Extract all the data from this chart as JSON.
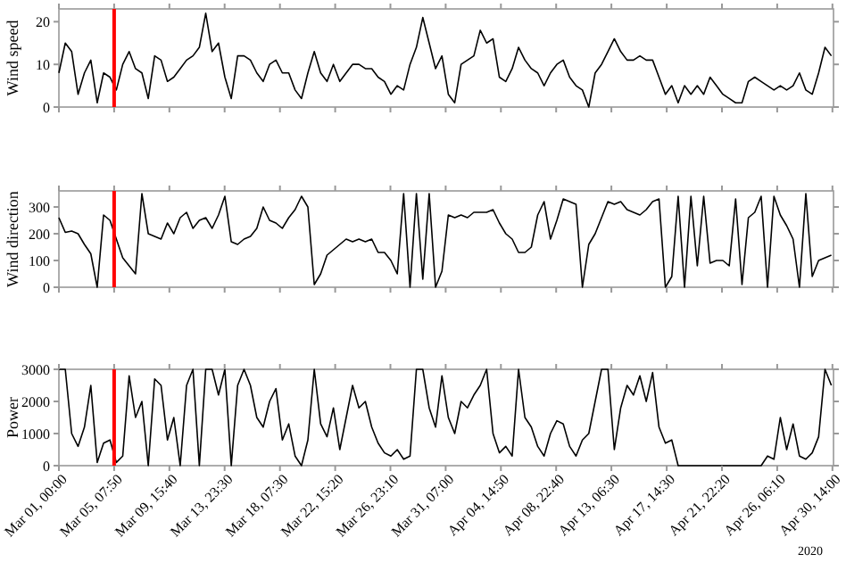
{
  "chart_data": [
    {
      "type": "line",
      "ylabel": "Wind speed",
      "xlim": [
        "2020-03-01T00:00",
        "2020-04-30T16:00"
      ],
      "ylim": [
        0,
        23
      ],
      "yticks": [
        0,
        10,
        20
      ],
      "tick_labels": "y",
      "grid": false,
      "xticks": [
        {
          "value": "2020-03-01T00:00",
          "label": null
        },
        {
          "value": "2020-03-05T07:50",
          "label": null
        },
        {
          "value": "2020-03-09T15:40",
          "label": null
        },
        {
          "value": "2020-03-13T23:30",
          "label": null
        },
        {
          "value": "2020-03-18T07:30",
          "label": null
        },
        {
          "value": "2020-03-22T15:20",
          "label": null
        },
        {
          "value": "2020-03-26T23:10",
          "label": null
        },
        {
          "value": "2020-03-31T07:00",
          "label": null
        },
        {
          "value": "2020-04-04T14:50",
          "label": null
        },
        {
          "value": "2020-04-08T22:40",
          "label": null
        },
        {
          "value": "2020-04-13T06:30",
          "label": null
        },
        {
          "value": "2020-04-17T14:30",
          "label": null
        },
        {
          "value": "2020-04-21T22:20",
          "label": null
        },
        {
          "value": "2020-04-26T06:10",
          "label": null
        },
        {
          "value": "2020-04-30T14:00",
          "label": null
        }
      ],
      "ref_lines": [
        {
          "axis": "x",
          "value": "2020-03-05T07:50",
          "color": "#ff0000"
        }
      ],
      "x": [
        "2020-03-01T00:00",
        "2020-03-01T12:00",
        "2020-03-02T00:00",
        "2020-03-02T12:00",
        "2020-03-03T00:00",
        "2020-03-03T12:00",
        "2020-03-04T00:00",
        "2020-03-04T12:00",
        "2020-03-05T00:00",
        "2020-03-05T12:00",
        "2020-03-06T00:00",
        "2020-03-06T12:00",
        "2020-03-07T00:00",
        "2020-03-07T12:00",
        "2020-03-08T00:00",
        "2020-03-08T12:00",
        "2020-03-09T00:00",
        "2020-03-09T12:00",
        "2020-03-10T00:00",
        "2020-03-10T12:00",
        "2020-03-11T00:00",
        "2020-03-11T12:00",
        "2020-03-12T00:00",
        "2020-03-12T12:00",
        "2020-03-13T00:00",
        "2020-03-13T12:00",
        "2020-03-14T00:00",
        "2020-03-14T12:00",
        "2020-03-15T00:00",
        "2020-03-15T12:00",
        "2020-03-16T00:00",
        "2020-03-16T12:00",
        "2020-03-17T00:00",
        "2020-03-17T12:00",
        "2020-03-18T00:00",
        "2020-03-18T12:00",
        "2020-03-19T00:00",
        "2020-03-19T12:00",
        "2020-03-20T00:00",
        "2020-03-20T12:00",
        "2020-03-21T00:00",
        "2020-03-21T12:00",
        "2020-03-22T00:00",
        "2020-03-22T12:00",
        "2020-03-23T00:00",
        "2020-03-23T12:00",
        "2020-03-24T00:00",
        "2020-03-24T12:00",
        "2020-03-25T00:00",
        "2020-03-25T12:00",
        "2020-03-26T00:00",
        "2020-03-26T12:00",
        "2020-03-27T00:00",
        "2020-03-27T12:00",
        "2020-03-28T00:00",
        "2020-03-28T12:00",
        "2020-03-29T00:00",
        "2020-03-29T12:00",
        "2020-03-30T00:00",
        "2020-03-30T12:00",
        "2020-03-31T00:00",
        "2020-03-31T12:00",
        "2020-04-01T00:00",
        "2020-04-01T12:00",
        "2020-04-02T00:00",
        "2020-04-02T12:00",
        "2020-04-03T00:00",
        "2020-04-03T12:00",
        "2020-04-04T00:00",
        "2020-04-04T12:00",
        "2020-04-05T00:00",
        "2020-04-05T12:00",
        "2020-04-06T00:00",
        "2020-04-06T12:00",
        "2020-04-07T00:00",
        "2020-04-07T12:00",
        "2020-04-08T00:00",
        "2020-04-08T12:00",
        "2020-04-09T00:00",
        "2020-04-09T12:00",
        "2020-04-10T00:00",
        "2020-04-10T12:00",
        "2020-04-11T00:00",
        "2020-04-11T12:00",
        "2020-04-12T00:00",
        "2020-04-12T12:00",
        "2020-04-13T00:00",
        "2020-04-13T12:00",
        "2020-04-14T00:00",
        "2020-04-14T12:00",
        "2020-04-15T00:00",
        "2020-04-15T12:00",
        "2020-04-16T00:00",
        "2020-04-16T12:00",
        "2020-04-17T00:00",
        "2020-04-17T12:00",
        "2020-04-18T00:00",
        "2020-04-18T12:00",
        "2020-04-19T00:00",
        "2020-04-19T12:00",
        "2020-04-20T00:00",
        "2020-04-20T12:00",
        "2020-04-21T00:00",
        "2020-04-21T12:00",
        "2020-04-22T00:00",
        "2020-04-22T12:00",
        "2020-04-23T00:00",
        "2020-04-23T12:00",
        "2020-04-24T00:00",
        "2020-04-24T12:00",
        "2020-04-25T00:00",
        "2020-04-25T12:00",
        "2020-04-26T00:00",
        "2020-04-26T12:00",
        "2020-04-27T00:00",
        "2020-04-27T12:00",
        "2020-04-28T00:00",
        "2020-04-28T12:00",
        "2020-04-29T00:00",
        "2020-04-29T12:00",
        "2020-04-30T00:00",
        "2020-04-30T12:00"
      ],
      "series": [
        {
          "color": "#000000",
          "values": [
            8,
            15,
            13,
            3,
            8,
            11,
            1,
            8,
            7,
            4,
            10,
            13,
            9,
            8,
            2,
            12,
            11,
            6,
            7,
            9,
            11,
            12,
            14,
            22,
            13,
            15,
            7,
            2,
            12,
            12,
            11,
            8,
            6,
            10,
            11,
            8,
            8,
            4,
            2,
            8,
            13,
            8,
            6,
            10,
            6,
            8,
            10,
            10,
            9,
            9,
            7,
            6,
            3,
            5,
            4,
            10,
            14,
            21,
            15,
            9,
            12,
            3,
            1,
            10,
            11,
            12,
            18,
            15,
            16,
            7,
            6,
            9,
            14,
            11,
            9,
            8,
            5,
            8,
            10,
            11,
            7,
            5,
            4,
            0,
            8,
            10,
            13,
            16,
            13,
            11,
            11,
            12,
            11,
            11,
            7,
            3,
            5,
            1,
            5,
            3,
            5,
            3,
            7,
            5,
            3,
            2,
            1,
            1,
            6,
            7,
            6,
            5,
            4,
            5,
            4,
            5,
            8,
            4,
            3,
            8,
            14,
            12
          ]
        }
      ]
    },
    {
      "type": "line",
      "ylabel": "Wind direction",
      "xlim": [
        "2020-03-01T00:00",
        "2020-04-30T16:00"
      ],
      "ylim": [
        0,
        360
      ],
      "yticks": [
        0,
        100,
        200,
        300
      ],
      "tick_labels": "y",
      "grid": false,
      "xticks": [
        {
          "value": "2020-03-01T00:00",
          "label": null
        },
        {
          "value": "2020-03-05T07:50",
          "label": null
        },
        {
          "value": "2020-03-09T15:40",
          "label": null
        },
        {
          "value": "2020-03-13T23:30",
          "label": null
        },
        {
          "value": "2020-03-18T07:30",
          "label": null
        },
        {
          "value": "2020-03-22T15:20",
          "label": null
        },
        {
          "value": "2020-03-26T23:10",
          "label": null
        },
        {
          "value": "2020-03-31T07:00",
          "label": null
        },
        {
          "value": "2020-04-04T14:50",
          "label": null
        },
        {
          "value": "2020-04-08T22:40",
          "label": null
        },
        {
          "value": "2020-04-13T06:30",
          "label": null
        },
        {
          "value": "2020-04-17T14:30",
          "label": null
        },
        {
          "value": "2020-04-21T22:20",
          "label": null
        },
        {
          "value": "2020-04-26T06:10",
          "label": null
        },
        {
          "value": "2020-04-30T14:00",
          "label": null
        }
      ],
      "ref_lines": [
        {
          "axis": "x",
          "value": "2020-03-05T07:50",
          "color": "#ff0000"
        }
      ],
      "x": [
        "2020-03-01T00:00",
        "2020-03-01T12:00",
        "2020-03-02T00:00",
        "2020-03-02T12:00",
        "2020-03-03T00:00",
        "2020-03-03T12:00",
        "2020-03-04T00:00",
        "2020-03-04T12:00",
        "2020-03-05T00:00",
        "2020-03-05T12:00",
        "2020-03-06T00:00",
        "2020-03-06T12:00",
        "2020-03-07T00:00",
        "2020-03-07T12:00",
        "2020-03-08T00:00",
        "2020-03-08T12:00",
        "2020-03-09T00:00",
        "2020-03-09T12:00",
        "2020-03-10T00:00",
        "2020-03-10T12:00",
        "2020-03-11T00:00",
        "2020-03-11T12:00",
        "2020-03-12T00:00",
        "2020-03-12T12:00",
        "2020-03-13T00:00",
        "2020-03-13T12:00",
        "2020-03-14T00:00",
        "2020-03-14T12:00",
        "2020-03-15T00:00",
        "2020-03-15T12:00",
        "2020-03-16T00:00",
        "2020-03-16T12:00",
        "2020-03-17T00:00",
        "2020-03-17T12:00",
        "2020-03-18T00:00",
        "2020-03-18T12:00",
        "2020-03-19T00:00",
        "2020-03-19T12:00",
        "2020-03-20T00:00",
        "2020-03-20T12:00",
        "2020-03-21T00:00",
        "2020-03-21T12:00",
        "2020-03-22T00:00",
        "2020-03-22T12:00",
        "2020-03-23T00:00",
        "2020-03-23T12:00",
        "2020-03-24T00:00",
        "2020-03-24T12:00",
        "2020-03-25T00:00",
        "2020-03-25T12:00",
        "2020-03-26T00:00",
        "2020-03-26T12:00",
        "2020-03-27T00:00",
        "2020-03-27T12:00",
        "2020-03-28T00:00",
        "2020-03-28T12:00",
        "2020-03-29T00:00",
        "2020-03-29T12:00",
        "2020-03-30T00:00",
        "2020-03-30T12:00",
        "2020-03-31T00:00",
        "2020-03-31T12:00",
        "2020-04-01T00:00",
        "2020-04-01T12:00",
        "2020-04-02T00:00",
        "2020-04-02T12:00",
        "2020-04-03T00:00",
        "2020-04-03T12:00",
        "2020-04-04T00:00",
        "2020-04-04T12:00",
        "2020-04-05T00:00",
        "2020-04-05T12:00",
        "2020-04-06T00:00",
        "2020-04-06T12:00",
        "2020-04-07T00:00",
        "2020-04-07T12:00",
        "2020-04-08T00:00",
        "2020-04-08T12:00",
        "2020-04-09T00:00",
        "2020-04-09T12:00",
        "2020-04-10T00:00",
        "2020-04-10T12:00",
        "2020-04-11T00:00",
        "2020-04-11T12:00",
        "2020-04-12T00:00",
        "2020-04-12T12:00",
        "2020-04-13T00:00",
        "2020-04-13T12:00",
        "2020-04-14T00:00",
        "2020-04-14T12:00",
        "2020-04-15T00:00",
        "2020-04-15T12:00",
        "2020-04-16T00:00",
        "2020-04-16T12:00",
        "2020-04-17T00:00",
        "2020-04-17T12:00",
        "2020-04-18T00:00",
        "2020-04-18T12:00",
        "2020-04-19T00:00",
        "2020-04-19T12:00",
        "2020-04-20T00:00",
        "2020-04-20T12:00",
        "2020-04-21T00:00",
        "2020-04-21T12:00",
        "2020-04-22T00:00",
        "2020-04-22T12:00",
        "2020-04-23T00:00",
        "2020-04-23T12:00",
        "2020-04-24T00:00",
        "2020-04-24T12:00",
        "2020-04-25T00:00",
        "2020-04-25T12:00",
        "2020-04-26T00:00",
        "2020-04-26T12:00",
        "2020-04-27T00:00",
        "2020-04-27T12:00",
        "2020-04-28T00:00",
        "2020-04-28T12:00",
        "2020-04-29T00:00",
        "2020-04-29T12:00",
        "2020-04-30T00:00",
        "2020-04-30T12:00"
      ],
      "series": [
        {
          "color": "#000000",
          "values": [
            260,
            205,
            210,
            200,
            160,
            125,
            0,
            270,
            250,
            180,
            110,
            80,
            50,
            350,
            200,
            190,
            180,
            240,
            200,
            260,
            280,
            220,
            250,
            260,
            220,
            270,
            340,
            170,
            160,
            180,
            190,
            220,
            300,
            250,
            240,
            220,
            260,
            290,
            340,
            300,
            10,
            50,
            120,
            140,
            160,
            180,
            170,
            180,
            170,
            180,
            130,
            130,
            100,
            50,
            350,
            0,
            350,
            30,
            350,
            0,
            60,
            270,
            260,
            270,
            260,
            280,
            280,
            280,
            290,
            240,
            200,
            180,
            130,
            130,
            150,
            270,
            320,
            180,
            250,
            330,
            320,
            310,
            0,
            160,
            200,
            260,
            320,
            310,
            320,
            290,
            280,
            270,
            290,
            320,
            330,
            0,
            40,
            340,
            0,
            340,
            80,
            340,
            90,
            100,
            100,
            80,
            330,
            10,
            260,
            280,
            340,
            0,
            340,
            270,
            230,
            180,
            0,
            350,
            40,
            100,
            110,
            120
          ]
        }
      ]
    },
    {
      "type": "line",
      "ylabel": "Power",
      "xlim": [
        "2020-03-01T00:00",
        "2020-04-30T16:00"
      ],
      "ylim": [
        0,
        3000
      ],
      "yticks": [
        0,
        1000,
        2000,
        3000
      ],
      "grid": false,
      "annotations": [
        "2020"
      ],
      "xticks": [
        {
          "value": "2020-03-01T00:00",
          "label": "Mar 01, 00:00"
        },
        {
          "value": "2020-03-05T07:50",
          "label": "Mar 05, 07:50"
        },
        {
          "value": "2020-03-09T15:40",
          "label": "Mar 09, 15:40"
        },
        {
          "value": "2020-03-13T23:30",
          "label": "Mar 13, 23:30"
        },
        {
          "value": "2020-03-18T07:30",
          "label": "Mar 18, 07:30"
        },
        {
          "value": "2020-03-22T15:20",
          "label": "Mar 22, 15:20"
        },
        {
          "value": "2020-03-26T23:10",
          "label": "Mar 26, 23:10"
        },
        {
          "value": "2020-03-31T07:00",
          "label": "Mar 31, 07:00"
        },
        {
          "value": "2020-04-04T14:50",
          "label": "Apr 04, 14:50"
        },
        {
          "value": "2020-04-08T22:40",
          "label": "Apr 08, 22:40"
        },
        {
          "value": "2020-04-13T06:30",
          "label": "Apr 13, 06:30"
        },
        {
          "value": "2020-04-17T14:30",
          "label": "Apr 17, 14:30"
        },
        {
          "value": "2020-04-21T22:20",
          "label": "Apr 21, 22:20"
        },
        {
          "value": "2020-04-26T06:10",
          "label": "Apr 26, 06:10"
        },
        {
          "value": "2020-04-30T14:00",
          "label": "Apr 30, 14:00"
        }
      ],
      "ref_lines": [
        {
          "axis": "x",
          "value": "2020-03-05T07:50",
          "color": "#ff0000"
        }
      ],
      "x": [
        "2020-03-01T00:00",
        "2020-03-01T12:00",
        "2020-03-02T00:00",
        "2020-03-02T12:00",
        "2020-03-03T00:00",
        "2020-03-03T12:00",
        "2020-03-04T00:00",
        "2020-03-04T12:00",
        "2020-03-05T00:00",
        "2020-03-05T12:00",
        "2020-03-06T00:00",
        "2020-03-06T12:00",
        "2020-03-07T00:00",
        "2020-03-07T12:00",
        "2020-03-08T00:00",
        "2020-03-08T12:00",
        "2020-03-09T00:00",
        "2020-03-09T12:00",
        "2020-03-10T00:00",
        "2020-03-10T12:00",
        "2020-03-11T00:00",
        "2020-03-11T12:00",
        "2020-03-12T00:00",
        "2020-03-12T12:00",
        "2020-03-13T00:00",
        "2020-03-13T12:00",
        "2020-03-14T00:00",
        "2020-03-14T12:00",
        "2020-03-15T00:00",
        "2020-03-15T12:00",
        "2020-03-16T00:00",
        "2020-03-16T12:00",
        "2020-03-17T00:00",
        "2020-03-17T12:00",
        "2020-03-18T00:00",
        "2020-03-18T12:00",
        "2020-03-19T00:00",
        "2020-03-19T12:00",
        "2020-03-20T00:00",
        "2020-03-20T12:00",
        "2020-03-21T00:00",
        "2020-03-21T12:00",
        "2020-03-22T00:00",
        "2020-03-22T12:00",
        "2020-03-23T00:00",
        "2020-03-23T12:00",
        "2020-03-24T00:00",
        "2020-03-24T12:00",
        "2020-03-25T00:00",
        "2020-03-25T12:00",
        "2020-03-26T00:00",
        "2020-03-26T12:00",
        "2020-03-27T00:00",
        "2020-03-27T12:00",
        "2020-03-28T00:00",
        "2020-03-28T12:00",
        "2020-03-29T00:00",
        "2020-03-29T12:00",
        "2020-03-30T00:00",
        "2020-03-30T12:00",
        "2020-03-31T00:00",
        "2020-03-31T12:00",
        "2020-04-01T00:00",
        "2020-04-01T12:00",
        "2020-04-02T00:00",
        "2020-04-02T12:00",
        "2020-04-03T00:00",
        "2020-04-03T12:00",
        "2020-04-04T00:00",
        "2020-04-04T12:00",
        "2020-04-05T00:00",
        "2020-04-05T12:00",
        "2020-04-06T00:00",
        "2020-04-06T12:00",
        "2020-04-07T00:00",
        "2020-04-07T12:00",
        "2020-04-08T00:00",
        "2020-04-08T12:00",
        "2020-04-09T00:00",
        "2020-04-09T12:00",
        "2020-04-10T00:00",
        "2020-04-10T12:00",
        "2020-04-11T00:00",
        "2020-04-11T12:00",
        "2020-04-12T00:00",
        "2020-04-12T12:00",
        "2020-04-13T00:00",
        "2020-04-13T12:00",
        "2020-04-14T00:00",
        "2020-04-14T12:00",
        "2020-04-15T00:00",
        "2020-04-15T12:00",
        "2020-04-16T00:00",
        "2020-04-16T12:00",
        "2020-04-17T00:00",
        "2020-04-17T12:00",
        "2020-04-18T00:00",
        "2020-04-18T12:00",
        "2020-04-19T00:00",
        "2020-04-19T12:00",
        "2020-04-20T00:00",
        "2020-04-20T12:00",
        "2020-04-21T00:00",
        "2020-04-21T12:00",
        "2020-04-22T00:00",
        "2020-04-22T12:00",
        "2020-04-23T00:00",
        "2020-04-23T12:00",
        "2020-04-24T00:00",
        "2020-04-24T12:00",
        "2020-04-25T00:00",
        "2020-04-25T12:00",
        "2020-04-26T00:00",
        "2020-04-26T12:00",
        "2020-04-27T00:00",
        "2020-04-27T12:00",
        "2020-04-28T00:00",
        "2020-04-28T12:00",
        "2020-04-29T00:00",
        "2020-04-29T12:00",
        "2020-04-30T00:00",
        "2020-04-30T12:00"
      ],
      "series": [
        {
          "color": "#000000",
          "values": [
            3000,
            3000,
            1000,
            600,
            1200,
            2500,
            100,
            700,
            800,
            100,
            300,
            2800,
            1500,
            2000,
            0,
            2700,
            2500,
            800,
            1500,
            0,
            2500,
            3000,
            0,
            3000,
            3000,
            2200,
            3000,
            0,
            2500,
            3000,
            2500,
            1500,
            1200,
            2000,
            2400,
            800,
            1300,
            300,
            0,
            800,
            3000,
            1300,
            900,
            1800,
            500,
            1500,
            2500,
            1800,
            2000,
            1200,
            700,
            400,
            300,
            500,
            200,
            300,
            3000,
            3000,
            1800,
            1200,
            2800,
            1500,
            1000,
            2000,
            1800,
            2200,
            2500,
            3000,
            1000,
            400,
            600,
            300,
            3000,
            1500,
            1200,
            600,
            300,
            1000,
            1400,
            1300,
            600,
            300,
            800,
            1000,
            2000,
            3000,
            3000,
            500,
            1800,
            2500,
            2200,
            2800,
            2000,
            2900,
            1200,
            700,
            800,
            0,
            0,
            0,
            0,
            0,
            0,
            0,
            0,
            0,
            0,
            0,
            0,
            0,
            0,
            300,
            200,
            1500,
            500,
            1300,
            300,
            200,
            400,
            900,
            3000,
            2500
          ]
        }
      ]
    }
  ]
}
